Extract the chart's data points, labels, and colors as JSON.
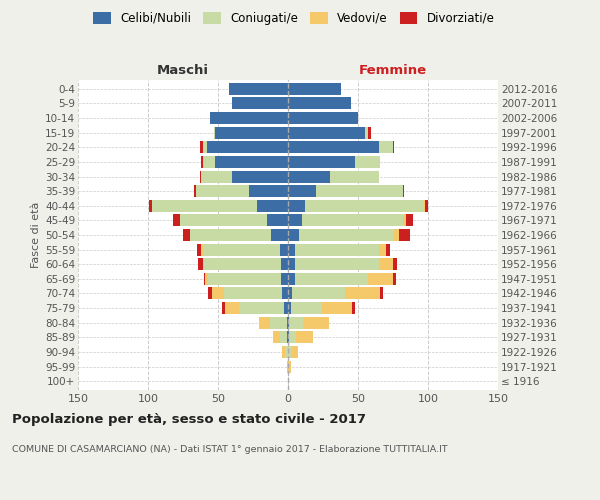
{
  "age_groups": [
    "100+",
    "95-99",
    "90-94",
    "85-89",
    "80-84",
    "75-79",
    "70-74",
    "65-69",
    "60-64",
    "55-59",
    "50-54",
    "45-49",
    "40-44",
    "35-39",
    "30-34",
    "25-29",
    "20-24",
    "15-19",
    "10-14",
    "5-9",
    "0-4"
  ],
  "birth_years": [
    "≤ 1916",
    "1917-1921",
    "1922-1926",
    "1927-1931",
    "1932-1936",
    "1937-1941",
    "1942-1946",
    "1947-1951",
    "1952-1956",
    "1957-1961",
    "1962-1966",
    "1967-1971",
    "1972-1976",
    "1977-1981",
    "1982-1986",
    "1987-1991",
    "1992-1996",
    "1997-2001",
    "2002-2006",
    "2007-2011",
    "2012-2016"
  ],
  "maschi_celibi": [
    0,
    0,
    0,
    1,
    1,
    3,
    4,
    5,
    5,
    6,
    12,
    15,
    22,
    28,
    40,
    52,
    58,
    52,
    56,
    40,
    42
  ],
  "maschi_coniugati": [
    0,
    0,
    2,
    5,
    12,
    32,
    42,
    52,
    55,
    55,
    58,
    62,
    75,
    38,
    22,
    8,
    3,
    1,
    0,
    0,
    0
  ],
  "maschi_vedovi": [
    0,
    1,
    2,
    5,
    8,
    10,
    8,
    2,
    1,
    1,
    0,
    0,
    0,
    0,
    0,
    1,
    0,
    0,
    0,
    0,
    0
  ],
  "maschi_divorziati": [
    0,
    0,
    0,
    0,
    0,
    2,
    3,
    1,
    3,
    3,
    5,
    5,
    2,
    1,
    1,
    1,
    2,
    0,
    0,
    0,
    0
  ],
  "femmine_nubili": [
    0,
    0,
    0,
    1,
    1,
    2,
    3,
    5,
    5,
    5,
    8,
    10,
    12,
    20,
    30,
    48,
    65,
    55,
    50,
    45,
    38
  ],
  "femmine_coniugate": [
    0,
    0,
    2,
    5,
    10,
    22,
    38,
    52,
    60,
    60,
    68,
    72,
    85,
    62,
    35,
    18,
    10,
    2,
    0,
    0,
    0
  ],
  "femmine_vedove": [
    0,
    2,
    5,
    12,
    18,
    22,
    25,
    18,
    10,
    5,
    3,
    2,
    1,
    0,
    0,
    0,
    0,
    0,
    0,
    0,
    0
  ],
  "femmine_divorziate": [
    0,
    0,
    0,
    0,
    0,
    2,
    2,
    2,
    3,
    3,
    8,
    5,
    2,
    1,
    0,
    0,
    1,
    2,
    0,
    0,
    0
  ],
  "color_celibi": "#3c6ea5",
  "color_coniugati": "#c8dba4",
  "color_vedovi": "#f5c96a",
  "color_divorziati": "#cc2020",
  "xlim": 150,
  "title": "Popolazione per età, sesso e stato civile - 2017",
  "subtitle": "COMUNE DI CASAMARCIANO (NA) - Dati ISTAT 1° gennaio 2017 - Elaborazione TUTTITALIA.IT",
  "bg_color": "#f0f0eb",
  "plot_bg": "#ffffff",
  "maschi_label_color": "#333333",
  "femmine_label_color": "#cc2020"
}
